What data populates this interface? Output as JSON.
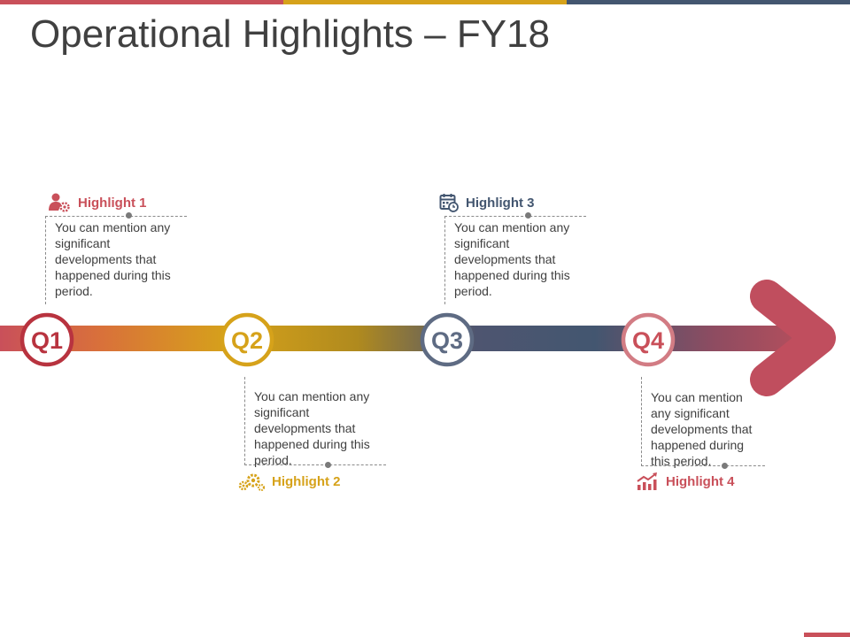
{
  "title": "Operational Highlights – FY18",
  "colors": {
    "red": "#C9505A",
    "gold": "#D6A21A",
    "orange": "#D9713A",
    "slate": "#435670",
    "text": "#404040"
  },
  "quarters": [
    {
      "label": "Q1",
      "color": "#B8333F"
    },
    {
      "label": "Q2",
      "color": "#D6A21A"
    },
    {
      "label": "Q3",
      "color": "#5E6B83"
    },
    {
      "label": "Q4",
      "color": "#C9505A"
    }
  ],
  "highlights": [
    {
      "title": "Highlight 1",
      "icon": "person-gear-icon",
      "color": "#C9505A",
      "text": "You can mention any significant developments that happened during this period."
    },
    {
      "title": "Highlight 2",
      "icon": "gears-icon",
      "color": "#D6A21A",
      "text": "You can mention any significant developments that happened during this period."
    },
    {
      "title": "Highlight 3",
      "icon": "calendar-clock-icon",
      "color": "#435670",
      "text": "You can mention any significant developments that happened during this period."
    },
    {
      "title": "Highlight 4",
      "icon": "growth-chart-icon",
      "color": "#C9505A",
      "text": "You can mention any significant developments that happened during this period."
    }
  ]
}
